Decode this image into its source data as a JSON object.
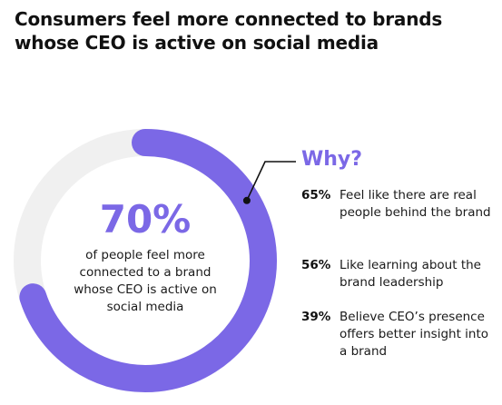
{
  "chart_data": {
    "type": "pie",
    "title": "Consumers feel more connected to brands whose CEO is active on social media",
    "highlight_value": "70%",
    "highlight_text": "of people feel more connected to a brand whose CEO is active on social media",
    "slices": [
      {
        "label": "Feel more connected",
        "value": 70,
        "color": "#7b68e6"
      },
      {
        "label": "Other",
        "value": 30,
        "color": "#f0f0f0"
      }
    ],
    "callout_title": "Why?",
    "reasons": [
      {
        "pct": "65%",
        "text": "Feel like there are real people behind the brand"
      },
      {
        "pct": "56%",
        "text": "Like learning about the brand leadership"
      },
      {
        "pct": "39%",
        "text": "Believe CEO’s presence offers better insight into a brand"
      }
    ]
  },
  "colors": {
    "accent": "#7b68e6",
    "track": "#f0f0f0",
    "text": "#111111"
  }
}
